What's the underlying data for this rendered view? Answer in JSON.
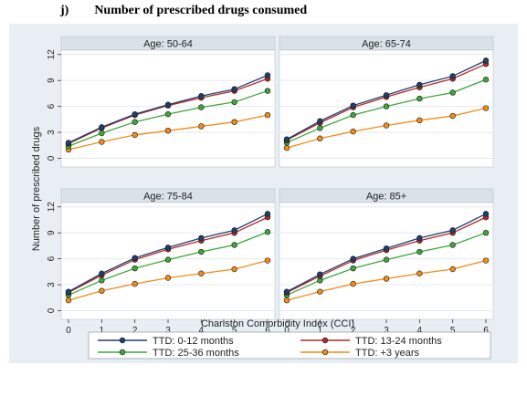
{
  "page": {
    "title": "j)        Number of prescribed drugs consumed"
  },
  "chart_data": {
    "type": "line",
    "layout": "2x2 small multiples",
    "xlabel": "Charlston Comorbidity Index (CCI)",
    "ylabel": "Number of prescribed drugs",
    "x": [
      0,
      1,
      2,
      3,
      4,
      5,
      6
    ],
    "xticks": [
      "0",
      "1",
      "2",
      "3",
      "4",
      "5",
      "6"
    ],
    "ylim": [
      -1,
      12.5
    ],
    "yticks": [
      0,
      3,
      6,
      9,
      12
    ],
    "grid": true,
    "legend_position": "bottom",
    "legend_columns": 2,
    "series_meta": [
      {
        "name": "TTD: 0-12 months",
        "color": "#1f3f6e"
      },
      {
        "name": "TTD: 13-24 months",
        "color": "#b22b2b"
      },
      {
        "name": "TTD: 25-36 months",
        "color": "#3fa63a"
      },
      {
        "name": "TTD: +3 years",
        "color": "#f08c1a"
      }
    ],
    "panels": [
      {
        "title": "Age: 50-64",
        "series": [
          {
            "name": "TTD: 0-12 months",
            "values": [
              1.8,
              3.6,
              5.1,
              6.2,
              7.2,
              8.0,
              9.6
            ]
          },
          {
            "name": "TTD: 13-24 months",
            "values": [
              1.7,
              3.5,
              5.0,
              6.1,
              7.0,
              7.8,
              9.2
            ]
          },
          {
            "name": "TTD: 25-36 months",
            "values": [
              1.4,
              2.9,
              4.2,
              5.1,
              5.9,
              6.5,
              7.8
            ]
          },
          {
            "name": "TTD: +3 years",
            "values": [
              1.0,
              1.9,
              2.7,
              3.2,
              3.7,
              4.2,
              5.0
            ]
          }
        ]
      },
      {
        "title": "Age: 65-74",
        "series": [
          {
            "name": "TTD: 0-12 months",
            "values": [
              2.2,
              4.3,
              6.1,
              7.3,
              8.5,
              9.5,
              11.3
            ]
          },
          {
            "name": "TTD: 13-24 months",
            "values": [
              2.1,
              4.1,
              5.9,
              7.1,
              8.2,
              9.2,
              10.9
            ]
          },
          {
            "name": "TTD: 25-36 months",
            "values": [
              1.8,
              3.5,
              5.0,
              6.0,
              6.9,
              7.6,
              9.1
            ]
          },
          {
            "name": "TTD: +3 years",
            "values": [
              1.2,
              2.3,
              3.1,
              3.8,
              4.4,
              4.9,
              5.8
            ]
          }
        ]
      },
      {
        "title": "Age: 75-84",
        "series": [
          {
            "name": "TTD: 0-12 months",
            "values": [
              2.2,
              4.3,
              6.1,
              7.3,
              8.4,
              9.3,
              11.2
            ]
          },
          {
            "name": "TTD: 13-24 months",
            "values": [
              2.1,
              4.1,
              5.9,
              7.1,
              8.1,
              9.0,
              10.8
            ]
          },
          {
            "name": "TTD: 25-36 months",
            "values": [
              1.8,
              3.5,
              4.9,
              5.9,
              6.8,
              7.6,
              9.1
            ]
          },
          {
            "name": "TTD: +3 years",
            "values": [
              1.2,
              2.3,
              3.1,
              3.8,
              4.3,
              4.8,
              5.8
            ]
          }
        ]
      },
      {
        "title": "Age: 85+",
        "series": [
          {
            "name": "TTD: 0-12 months",
            "values": [
              2.2,
              4.2,
              6.0,
              7.2,
              8.4,
              9.3,
              11.2
            ]
          },
          {
            "name": "TTD: 13-24 months",
            "values": [
              2.1,
              4.0,
              5.8,
              7.0,
              8.1,
              9.0,
              10.8
            ]
          },
          {
            "name": "TTD: 25-36 months",
            "values": [
              1.8,
              3.5,
              4.9,
              5.9,
              6.8,
              7.6,
              9.0
            ]
          },
          {
            "name": "TTD: +3 years",
            "values": [
              1.2,
              2.2,
              3.1,
              3.7,
              4.3,
              4.8,
              5.8
            ]
          }
        ]
      }
    ]
  }
}
